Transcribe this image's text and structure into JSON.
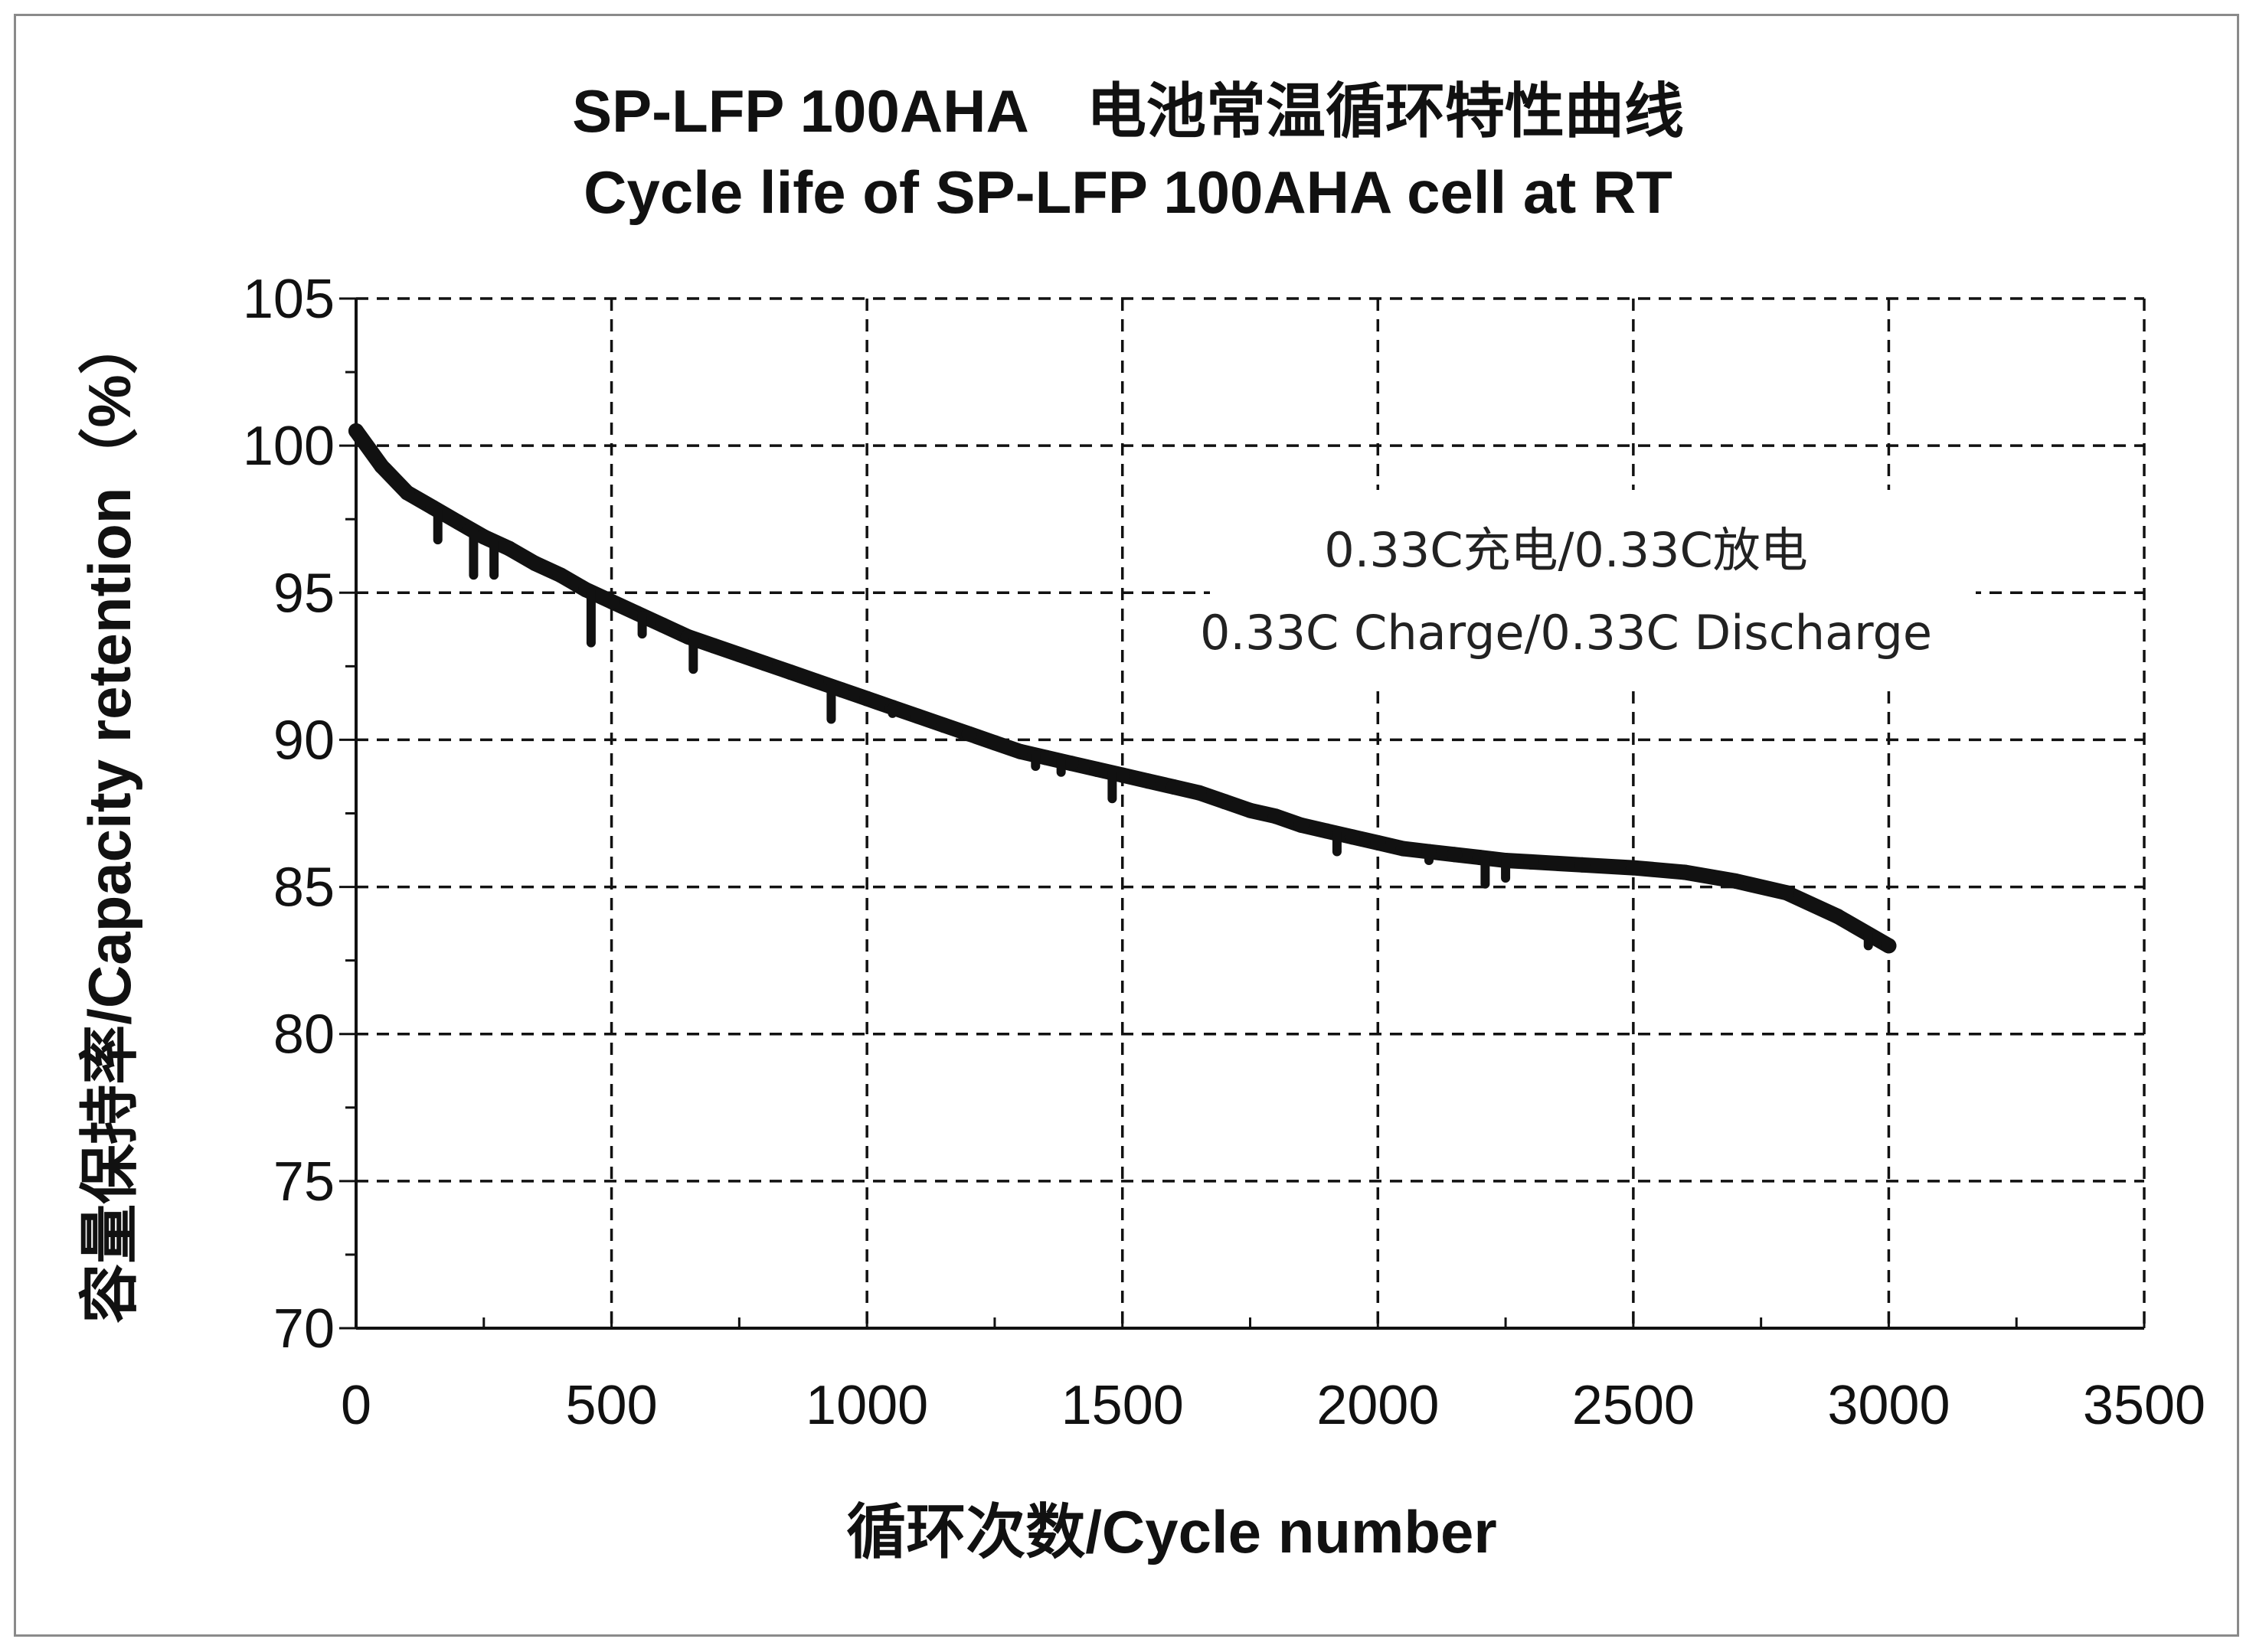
{
  "chart_data": {
    "type": "line",
    "title": "SP-LFP 100AHA　电池常温循环特性曲线",
    "subtitle": "Cycle life of SP-LFP 100AHA cell at RT",
    "xlabel": "循环次数/Cycle number",
    "ylabel": "容量保持率/Capacity retention（%）",
    "xlim": [
      0,
      3500
    ],
    "ylim": [
      70,
      105
    ],
    "x_ticks": [
      "0",
      "500",
      "1000",
      "1500",
      "2000",
      "2500",
      "3000",
      "3500"
    ],
    "y_ticks": [
      "70",
      "75",
      "80",
      "85",
      "90",
      "95",
      "100",
      "105"
    ],
    "grid": "dashed",
    "annotation": [
      "0.33C充电/0.33C放电",
      "0.33C Charge/0.33C Discharge"
    ],
    "series": [
      {
        "x": [
          0,
          50,
          100,
          150,
          200,
          250,
          300,
          350,
          400,
          450,
          500,
          550,
          600,
          650,
          700,
          750,
          800,
          850,
          900,
          950,
          1000,
          1050,
          1100,
          1150,
          1200,
          1250,
          1300,
          1350,
          1400,
          1450,
          1500,
          1550,
          1600,
          1650,
          1700,
          1750,
          1800,
          1850,
          1900,
          1950,
          2000,
          2050,
          2100,
          2150,
          2200,
          2250,
          2300,
          2400,
          2500,
          2600,
          2700,
          2800,
          2900,
          3000
        ],
        "values": [
          100.5,
          99.3,
          98.4,
          97.9,
          97.4,
          96.9,
          96.5,
          96.0,
          95.6,
          95.1,
          94.7,
          94.3,
          93.9,
          93.5,
          93.2,
          92.9,
          92.6,
          92.3,
          92.0,
          91.7,
          91.4,
          91.1,
          90.8,
          90.5,
          90.2,
          89.9,
          89.6,
          89.4,
          89.2,
          89.0,
          88.8,
          88.6,
          88.4,
          88.2,
          87.9,
          87.6,
          87.4,
          87.1,
          86.9,
          86.7,
          86.5,
          86.3,
          86.2,
          86.1,
          86.0,
          85.9,
          85.85,
          85.75,
          85.65,
          85.5,
          85.2,
          84.8,
          84.0,
          83.0
        ]
      }
    ],
    "dips": [
      {
        "x": 160,
        "y": 96.8
      },
      {
        "x": 230,
        "y": 95.6
      },
      {
        "x": 270,
        "y": 95.6
      },
      {
        "x": 460,
        "y": 93.3
      },
      {
        "x": 560,
        "y": 93.6
      },
      {
        "x": 660,
        "y": 92.4
      },
      {
        "x": 930,
        "y": 90.7
      },
      {
        "x": 1050,
        "y": 90.9
      },
      {
        "x": 1330,
        "y": 89.1
      },
      {
        "x": 1380,
        "y": 88.9
      },
      {
        "x": 1480,
        "y": 88.0
      },
      {
        "x": 1920,
        "y": 86.2
      },
      {
        "x": 2100,
        "y": 85.9
      },
      {
        "x": 2210,
        "y": 85.1
      },
      {
        "x": 2250,
        "y": 85.3
      },
      {
        "x": 2960,
        "y": 83.0
      }
    ],
    "line_color": "#111111",
    "grid_color": "#111111"
  }
}
